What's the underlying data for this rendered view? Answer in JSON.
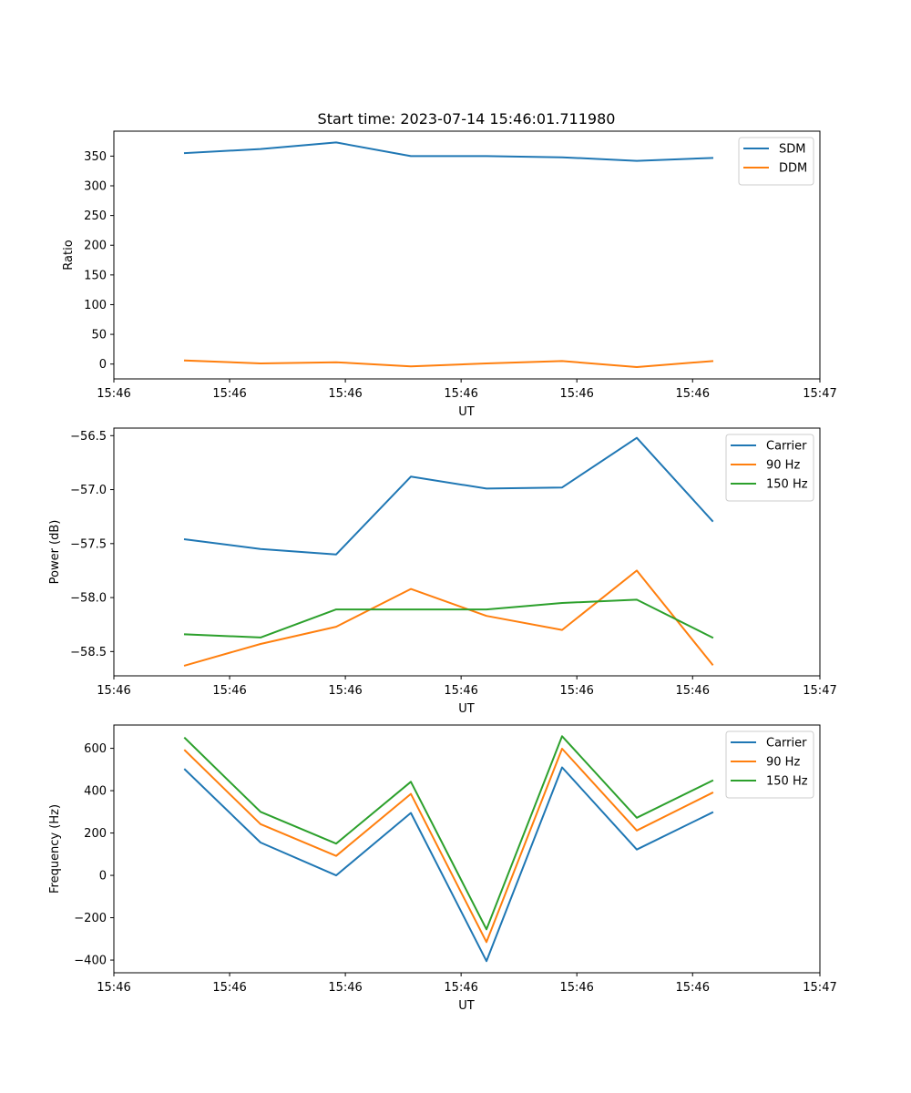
{
  "title": "Start time: 2023-07-14 15:46:01.711980",
  "colors": {
    "blue": "#1f77b4",
    "orange": "#ff7f0e",
    "green": "#2ca02c"
  },
  "chart_data": [
    {
      "type": "line",
      "name": "ratio-chart",
      "ylabel": "Ratio",
      "xlabel": "UT",
      "x_index": [
        0,
        1,
        2,
        3,
        4,
        5,
        6,
        7
      ],
      "xlim": [
        -0.75,
        8.4
      ],
      "x_ticks": [
        -0.75,
        0.75,
        2.25,
        3.75,
        5.25,
        6.75,
        8.4
      ],
      "x_tick_labels": [
        "15:46",
        "15:46",
        "15:46",
        "15:46",
        "15:46",
        "15:46",
        "15:47"
      ],
      "ylim": [
        -25,
        392
      ],
      "y_ticks": [
        0,
        50,
        100,
        150,
        200,
        250,
        300,
        350
      ],
      "y_tick_labels": [
        "0",
        "50",
        "100",
        "150",
        "200",
        "250",
        "300",
        "350"
      ],
      "legend_position": "top-right",
      "series": [
        {
          "name": "SDM",
          "color": "#1f77b4",
          "values": [
            355,
            362,
            373,
            350,
            350,
            348,
            342,
            347
          ]
        },
        {
          "name": "DDM",
          "color": "#ff7f0e",
          "values": [
            6,
            1,
            3,
            -4,
            1,
            5,
            -5,
            5
          ]
        }
      ]
    },
    {
      "type": "line",
      "name": "power-chart",
      "ylabel": "Power (dB)",
      "xlabel": "UT",
      "x_index": [
        0,
        1,
        2,
        3,
        4,
        5,
        6,
        7
      ],
      "xlim": [
        -0.75,
        8.4
      ],
      "x_ticks": [
        -0.75,
        0.75,
        2.25,
        3.75,
        5.25,
        6.75,
        8.4
      ],
      "x_tick_labels": [
        "15:46",
        "15:46",
        "15:46",
        "15:46",
        "15:46",
        "15:46",
        "15:47"
      ],
      "ylim": [
        -58.725,
        -56.43
      ],
      "y_ticks": [
        -58.5,
        -58.0,
        -57.5,
        -57.0,
        -56.5
      ],
      "y_tick_labels": [
        "−58.5",
        "−58.0",
        "−57.5",
        "−57.0",
        "−56.5"
      ],
      "legend_position": "top-right",
      "series": [
        {
          "name": "Carrier",
          "color": "#1f77b4",
          "values": [
            -57.46,
            -57.55,
            -57.6,
            -56.88,
            -56.99,
            -56.98,
            -56.52,
            -57.29
          ]
        },
        {
          "name": "90 Hz",
          "color": "#ff7f0e",
          "values": [
            -58.63,
            -58.43,
            -58.27,
            -57.92,
            -58.17,
            -58.3,
            -57.75,
            -58.62
          ]
        },
        {
          "name": "150 Hz",
          "color": "#2ca02c",
          "values": [
            -58.34,
            -58.37,
            -58.11,
            -58.11,
            -58.11,
            -58.05,
            -58.02,
            -58.37
          ]
        }
      ]
    },
    {
      "type": "line",
      "name": "frequency-chart",
      "ylabel": "Frequency (Hz)",
      "xlabel": "UT",
      "x_index": [
        0,
        1,
        2,
        3,
        4,
        5,
        6,
        7
      ],
      "xlim": [
        -0.75,
        8.4
      ],
      "x_ticks": [
        -0.75,
        0.75,
        2.25,
        3.75,
        5.25,
        6.75,
        8.4
      ],
      "x_tick_labels": [
        "15:46",
        "15:46",
        "15:46",
        "15:46",
        "15:46",
        "15:46",
        "15:47"
      ],
      "ylim": [
        -460,
        710
      ],
      "y_ticks": [
        -400,
        -200,
        0,
        200,
        400,
        600
      ],
      "y_tick_labels": [
        "−400",
        "−200",
        "0",
        "200",
        "400",
        "600"
      ],
      "legend_position": "top-right",
      "series": [
        {
          "name": "Carrier",
          "color": "#1f77b4",
          "values": [
            500,
            155,
            0,
            295,
            -405,
            510,
            122,
            297
          ]
        },
        {
          "name": "90 Hz",
          "color": "#ff7f0e",
          "values": [
            590,
            242,
            92,
            385,
            -315,
            598,
            212,
            390
          ]
        },
        {
          "name": "150 Hz",
          "color": "#2ca02c",
          "values": [
            648,
            300,
            150,
            442,
            -255,
            657,
            272,
            447
          ]
        }
      ]
    }
  ]
}
